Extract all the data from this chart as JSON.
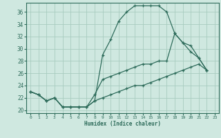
{
  "xlabel": "Humidex (Indice chaleur)",
  "xlim": [
    -0.5,
    23.5
  ],
  "ylim": [
    19.5,
    37.5
  ],
  "yticks": [
    20,
    22,
    24,
    26,
    28,
    30,
    32,
    34,
    36
  ],
  "xticks": [
    0,
    1,
    2,
    3,
    4,
    5,
    6,
    7,
    8,
    9,
    10,
    11,
    12,
    13,
    14,
    15,
    16,
    17,
    18,
    19,
    20,
    21,
    22,
    23
  ],
  "bg_color": "#cfe8e0",
  "grid_color": "#a8ccbf",
  "line_color": "#2d6b5a",
  "series1_y": [
    23.0,
    22.5,
    21.5,
    22.0,
    20.5,
    20.5,
    20.5,
    20.5,
    21.5,
    29.0,
    31.5,
    34.5,
    36.0,
    37.0,
    37.0,
    37.0,
    37.0,
    36.0,
    32.5,
    31.0,
    29.5,
    28.5,
    26.5,
    null
  ],
  "series2_y": [
    23.0,
    22.5,
    21.5,
    22.0,
    20.5,
    20.5,
    20.5,
    20.5,
    22.5,
    25.0,
    25.5,
    26.0,
    26.5,
    27.0,
    27.5,
    27.5,
    28.0,
    28.0,
    32.5,
    31.0,
    30.5,
    28.5,
    26.5,
    null
  ],
  "series3_y": [
    23.0,
    22.5,
    21.5,
    22.0,
    20.5,
    20.5,
    20.5,
    20.5,
    21.5,
    22.0,
    22.5,
    23.0,
    23.5,
    24.0,
    24.0,
    24.5,
    25.0,
    25.5,
    26.0,
    26.5,
    27.0,
    27.5,
    26.5,
    null
  ]
}
